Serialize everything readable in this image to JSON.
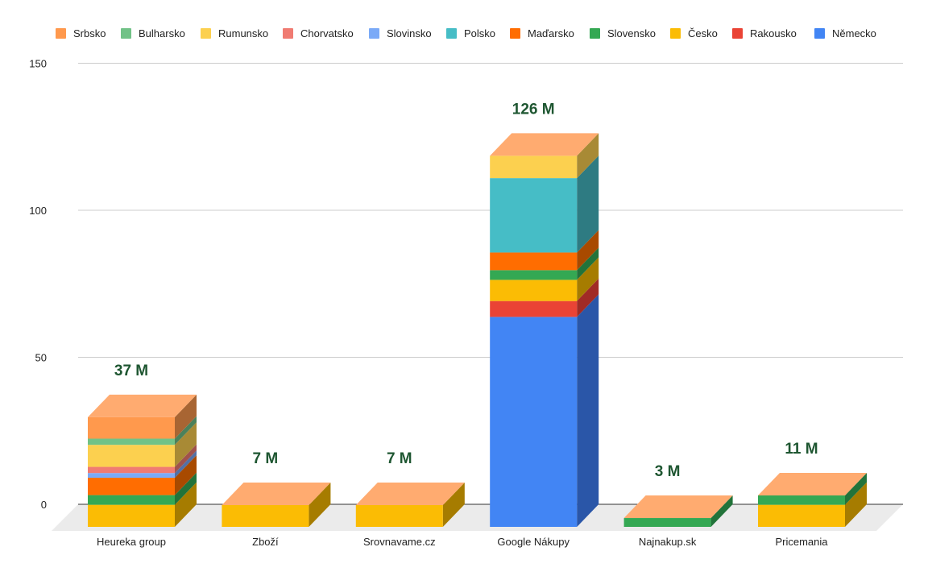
{
  "chart_data": {
    "type": "bar",
    "stacked": true,
    "three_d": true,
    "title": "",
    "xlabel": "",
    "ylabel": "",
    "ylim": [
      0,
      150
    ],
    "y_ticks": [
      0,
      50,
      100,
      150
    ],
    "grid": true,
    "legend_position": "top",
    "categories": [
      "Heureka group",
      "Zboží",
      "Srovnavame.cz",
      "Google Nákupy",
      "Najnakup.sk",
      "Pricemania"
    ],
    "total_labels": [
      "37 M",
      "7 M",
      "7 M",
      "126 M",
      "3 M",
      "11 M"
    ],
    "legend_order": [
      "Srbsko",
      "Bulharsko",
      "Rumunsko",
      "Chorvatsko",
      "Slovinsko",
      "Polsko",
      "Maďarsko",
      "Slovensko",
      "Česko",
      "Rakousko",
      "Německo"
    ],
    "series": [
      {
        "name": "Německo",
        "color": "#4285f4",
        "side": "#2a56a8",
        "values": [
          0,
          0,
          0,
          71.4,
          0,
          0
        ]
      },
      {
        "name": "Rakousko",
        "color": "#ea4335",
        "side": "#a12b26",
        "values": [
          0,
          0,
          0,
          5.4,
          0,
          0
        ]
      },
      {
        "name": "Česko",
        "color": "#fbbc04",
        "side": "#a67c00",
        "values": [
          7.5,
          7.4,
          7.4,
          7.2,
          0,
          7.5
        ]
      },
      {
        "name": "Slovensko",
        "color": "#34a853",
        "side": "#22733a",
        "values": [
          3.3,
          0,
          0,
          3.3,
          3.0,
          3.2
        ]
      },
      {
        "name": "Maďarsko",
        "color": "#ff6d01",
        "side": "#a84a00",
        "values": [
          5.9,
          0,
          0,
          6.0,
          0,
          0
        ]
      },
      {
        "name": "Polsko",
        "color": "#46bdc6",
        "side": "#2e7b82",
        "values": [
          0,
          0,
          0,
          25.3,
          0,
          0
        ]
      },
      {
        "name": "Slovinsko",
        "color": "#7baaf7",
        "side": "#5270a5",
        "values": [
          1.6,
          0,
          0,
          0,
          0,
          0
        ]
      },
      {
        "name": "Chorvatsko",
        "color": "#f07b72",
        "side": "#a0524c",
        "values": [
          2.1,
          0,
          0,
          0,
          0,
          0
        ]
      },
      {
        "name": "Rumunsko",
        "color": "#fcd04f",
        "side": "#a88a35",
        "values": [
          7.5,
          0,
          0,
          7.6,
          0,
          0
        ]
      },
      {
        "name": "Bulharsko",
        "color": "#71c287",
        "side": "#4b815a",
        "values": [
          2.1,
          0,
          0,
          0,
          0,
          0
        ]
      },
      {
        "name": "Srbsko",
        "color": "#ff994d",
        "side": "#a86533",
        "values": [
          7.3,
          0,
          0,
          0,
          0,
          0
        ]
      }
    ],
    "top_face_color": "#ffab70",
    "floor_color": "#ebebeb",
    "baseline_color": "#333333",
    "grid_color": "#cccccc",
    "total_label_color": "#1e5631"
  }
}
